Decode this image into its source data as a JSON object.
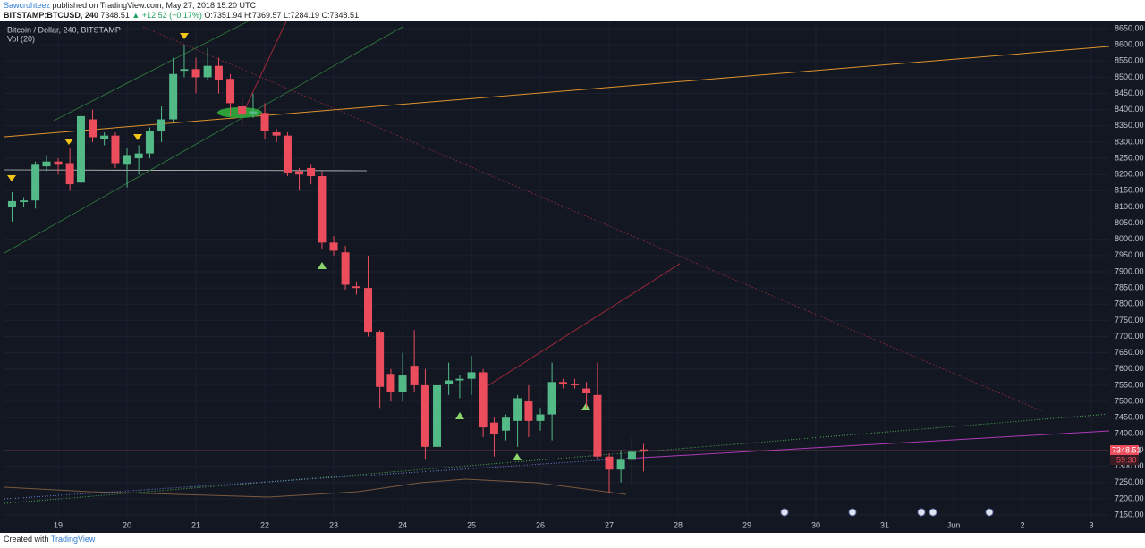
{
  "header": {
    "author": "Sawcruhteez",
    "published": "published on TradingView.com, May 27, 2018 15:20 UTC",
    "symbol": "BITSTAMP:BTCUSD, 240",
    "last": "7348.51",
    "change": "▲ +12.52 (+0.17%)",
    "ohlc": "O:7351.94 H:7369.57 L:7284.19 C:7348.51"
  },
  "footer": {
    "created": "Created with",
    "brand": "TradingView"
  },
  "chart_data": {
    "type": "candlestick",
    "title": "Bitcoin / Dollar, 240, BITSTAMP",
    "subtitle": "Vol (20)",
    "up_color": "#53b987",
    "down_color": "#eb4d5c",
    "background": "#131722",
    "grid": true,
    "x": [
      18.33,
      18.5,
      18.67,
      18.83,
      19,
      19.17,
      19.33,
      19.5,
      19.67,
      19.83,
      20,
      20.17,
      20.33,
      20.5,
      20.67,
      20.83,
      21,
      21.17,
      21.33,
      21.5,
      21.67,
      21.83,
      22,
      22.17,
      22.33,
      22.5,
      22.67,
      22.83,
      23,
      23.17,
      23.33,
      23.5,
      23.67,
      23.83,
      24,
      24.17,
      24.33,
      24.5,
      24.67,
      24.83,
      25,
      25.17,
      25.33,
      25.5,
      25.67,
      25.83,
      26,
      26.17,
      26.33,
      26.5,
      26.67,
      26.83,
      27,
      27.17,
      27.33,
      27.5
    ],
    "open": [
      8100,
      8115,
      8120,
      8225,
      8240,
      8235,
      8175,
      8370,
      8310,
      8320,
      8230,
      8250,
      8265,
      8335,
      8370,
      8520,
      8525,
      8500,
      8535,
      8495,
      8410,
      8385,
      8390,
      8330,
      8320,
      8210,
      8220,
      8195,
      7990,
      7960,
      7855,
      7850,
      7715,
      7585,
      7530,
      7610,
      7550,
      7360,
      7555,
      7565,
      7570,
      7590,
      7435,
      7410,
      7440,
      7500,
      7440,
      7460,
      7560,
      7555,
      7540,
      7520,
      7330,
      7290,
      7320,
      7351.94
    ],
    "high": [
      8145,
      8130,
      8240,
      8260,
      8250,
      8280,
      8400,
      8400,
      8330,
      8330,
      8280,
      8290,
      8345,
      8410,
      8560,
      8600,
      8560,
      8590,
      8560,
      8510,
      8440,
      8450,
      8420,
      8340,
      8330,
      8220,
      8230,
      8210,
      8010,
      7980,
      7870,
      7950,
      7720,
      7600,
      7650,
      7720,
      7600,
      7560,
      7620,
      7580,
      7640,
      7600,
      7450,
      7460,
      7520,
      7550,
      7480,
      7620,
      7570,
      7570,
      7560,
      7620,
      7340,
      7350,
      7390,
      7369.57
    ],
    "low": [
      8055,
      8100,
      8095,
      8210,
      8200,
      8150,
      8170,
      8300,
      8290,
      8220,
      8160,
      8200,
      8250,
      8300,
      8360,
      8500,
      8450,
      8490,
      8450,
      8380,
      8350,
      8375,
      8310,
      8300,
      8195,
      8150,
      8170,
      7970,
      7950,
      7845,
      7830,
      7700,
      7480,
      7500,
      7500,
      7530,
      7320,
      7300,
      7520,
      7510,
      7520,
      7390,
      7330,
      7380,
      7360,
      7390,
      7410,
      7380,
      7540,
      7540,
      7480,
      7320,
      7220,
      7250,
      7240,
      7284.19
    ],
    "close": [
      8118,
      8120,
      8230,
      8240,
      8230,
      8170,
      8380,
      8315,
      8320,
      8235,
      8260,
      8265,
      8335,
      8370,
      8510,
      8525,
      8500,
      8535,
      8490,
      8420,
      8385,
      8395,
      8335,
      8320,
      8205,
      8200,
      8195,
      7990,
      7965,
      7860,
      7850,
      7715,
      7545,
      7530,
      7580,
      7550,
      7360,
      7550,
      7565,
      7570,
      7590,
      7420,
      7400,
      7450,
      7510,
      7440,
      7460,
      7560,
      7555,
      7550,
      7525,
      7330,
      7290,
      7320,
      7345,
      7348.51
    ],
    "last_price": 7348.51,
    "countdown": "59:30",
    "xlim": [
      18.22,
      34.26
    ],
    "ylim": [
      7139,
      8672
    ],
    "xticks": [
      19,
      20,
      21,
      22,
      23,
      24,
      25,
      26,
      27,
      28,
      29,
      30,
      31,
      {
        "value": 32,
        "label": "Jun"
      },
      {
        "value": 33,
        "label": "2"
      },
      {
        "value": 34,
        "label": "3"
      }
    ],
    "yticks": [
      {
        "value": 7150,
        "label": "7150.00"
      },
      {
        "value": 7200,
        "label": "7200.00"
      },
      {
        "value": 7250,
        "label": "7250.00"
      },
      {
        "value": 7300,
        "label": "7300.00"
      },
      {
        "value": 7350,
        "label": "7350.00"
      },
      {
        "value": 7400,
        "label": "7400.00"
      },
      {
        "value": 7450,
        "label": "7450.00"
      },
      {
        "value": 7500,
        "label": "7500.00"
      },
      {
        "value": 7550,
        "label": "7550.00"
      },
      {
        "value": 7600,
        "label": "7600.00"
      },
      {
        "value": 7650,
        "label": "7650.00"
      },
      {
        "value": 7700,
        "label": "7700.00"
      },
      {
        "value": 7750,
        "label": "7750.00"
      },
      {
        "value": 7800,
        "label": "7800.00"
      },
      {
        "value": 7850,
        "label": "7850.00"
      },
      {
        "value": 7900,
        "label": "7900.00"
      },
      {
        "value": 7950,
        "label": "7950.00"
      },
      {
        "value": 8000,
        "label": "8000.00"
      },
      {
        "value": 8050,
        "label": "8050.00"
      },
      {
        "value": 8100,
        "label": "8100.00"
      },
      {
        "value": 8150,
        "label": "8150.00"
      },
      {
        "value": 8200,
        "label": "8200.00"
      },
      {
        "value": 8250,
        "label": "8250.00"
      },
      {
        "value": 8300,
        "label": "8300.00"
      },
      {
        "value": 8350,
        "label": "8350.00"
      },
      {
        "value": 8400,
        "label": "8400.00"
      },
      {
        "value": 8450,
        "label": "8450.00"
      },
      {
        "value": 8500,
        "label": "8500.00"
      },
      {
        "value": 8550,
        "label": "8550.00"
      },
      {
        "value": 8600,
        "label": "8600.00"
      },
      {
        "value": 8650,
        "label": "8650.00"
      }
    ]
  }
}
